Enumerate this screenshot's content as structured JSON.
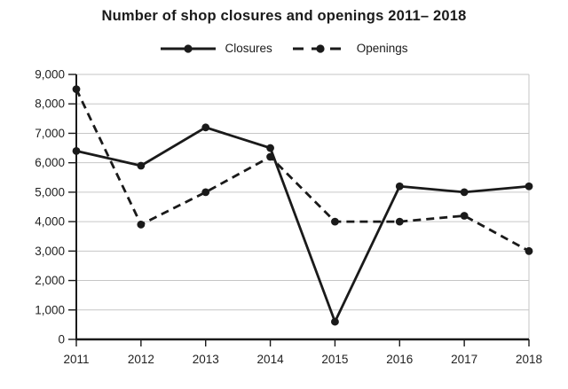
{
  "chart_data": {
    "type": "line",
    "title": "Number of shop closures and openings 2011– 2018",
    "xlabel": "",
    "ylabel": "",
    "categories": [
      "2011",
      "2012",
      "2013",
      "2014",
      "2015",
      "2016",
      "2017",
      "2018"
    ],
    "series": [
      {
        "name": "Closures",
        "style": "solid",
        "values": [
          6400,
          5900,
          7200,
          6500,
          600,
          5200,
          5000,
          5200
        ]
      },
      {
        "name": "Openings",
        "style": "dashed",
        "values": [
          8500,
          3900,
          5000,
          6200,
          4000,
          4000,
          4200,
          3000
        ]
      }
    ],
    "ylim": [
      0,
      9000
    ],
    "ytick_interval": 1000,
    "ytick_labels": [
      "0",
      "1,000",
      "2,000",
      "3,000",
      "4,000",
      "5,000",
      "6,000",
      "7,000",
      "8,000",
      "9,000"
    ],
    "grid": "horizontal-only",
    "legend_position": "top-center",
    "colors": {
      "line": "#1a1a1a",
      "grid": "#c6c6c6",
      "text": "#1f1f1f",
      "background": "#ffffff"
    }
  }
}
